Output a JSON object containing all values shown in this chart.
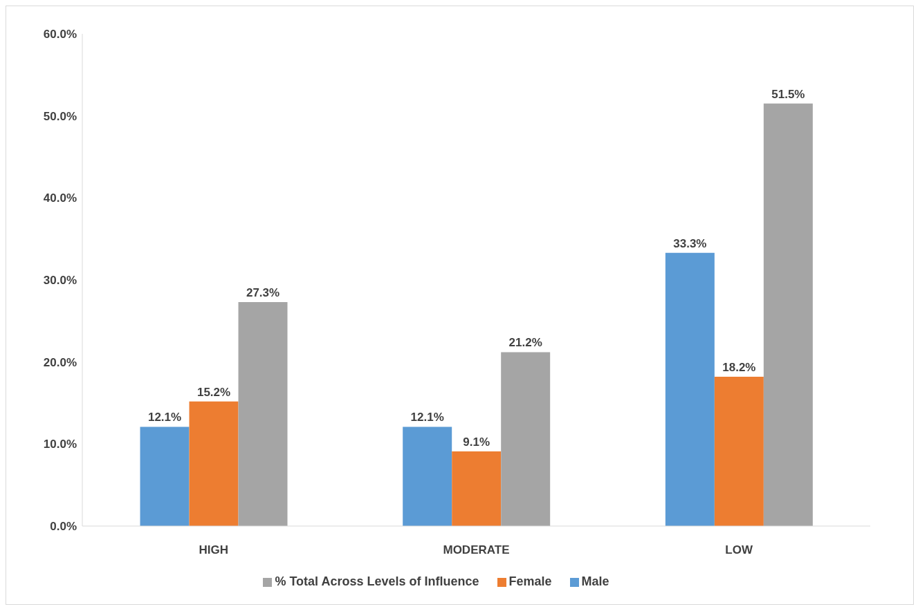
{
  "chart_data": {
    "type": "bar",
    "categories": [
      "HIGH",
      "MODERATE",
      "LOW"
    ],
    "series": [
      {
        "name": "Male",
        "color": "#5b9bd5",
        "values": [
          12.1,
          12.1,
          33.3
        ],
        "value_labels": [
          "12.1%",
          "12.1%",
          "33.3%"
        ]
      },
      {
        "name": "Female",
        "color": "#ed7d31",
        "values": [
          15.2,
          9.1,
          18.2
        ],
        "value_labels": [
          "15.2%",
          "9.1%",
          "18.2%"
        ]
      },
      {
        "name": "% Total Across Levels of Influence",
        "color": "#a5a5a5",
        "values": [
          27.3,
          21.2,
          51.5
        ],
        "value_labels": [
          "27.3%",
          "21.2%",
          "51.5%"
        ]
      }
    ],
    "ylim": [
      0,
      60
    ],
    "yticks": [
      {
        "value": 0,
        "label": "0.0%"
      },
      {
        "value": 10,
        "label": "10.0%"
      },
      {
        "value": 20,
        "label": "20.0%"
      },
      {
        "value": 30,
        "label": "30.0%"
      },
      {
        "value": 40,
        "label": "40.0%"
      },
      {
        "value": 50,
        "label": "50.0%"
      },
      {
        "value": 60,
        "label": "60.0%"
      }
    ],
    "grid": false,
    "legend": "bottom"
  }
}
